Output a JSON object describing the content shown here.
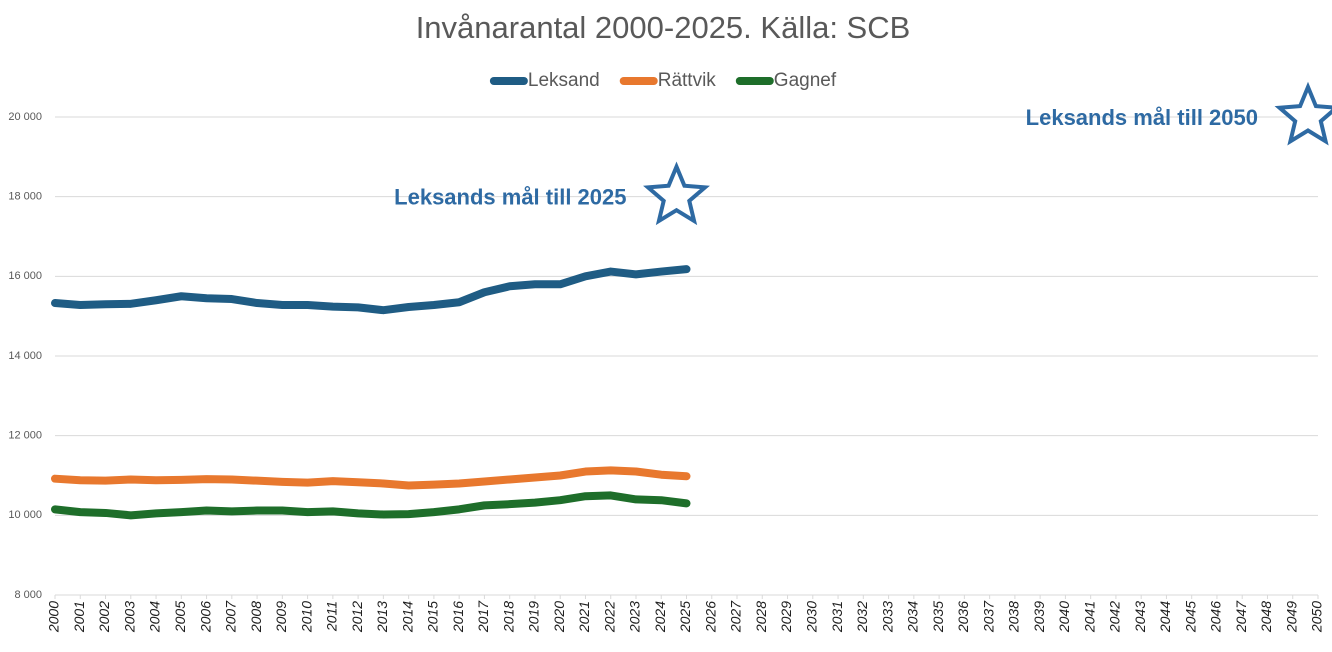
{
  "chart_data": {
    "type": "line",
    "title": "Invånarantal 2000-2025. Källa: SCB",
    "x": [
      2000,
      2001,
      2002,
      2003,
      2004,
      2005,
      2006,
      2007,
      2008,
      2009,
      2010,
      2011,
      2012,
      2013,
      2014,
      2015,
      2016,
      2017,
      2018,
      2019,
      2020,
      2021,
      2022,
      2023,
      2024,
      2025
    ],
    "series": [
      {
        "name": "Leksand",
        "color": "#1f5c84",
        "values": [
          15330,
          15280,
          15300,
          15310,
          15400,
          15500,
          15450,
          15430,
          15330,
          15280,
          15280,
          15240,
          15220,
          15150,
          15230,
          15280,
          15350,
          15600,
          15750,
          15800,
          15800,
          16000,
          16120,
          16050,
          16120,
          16180
        ]
      },
      {
        "name": "Rättvik",
        "color": "#e8782e",
        "values": [
          10920,
          10880,
          10870,
          10900,
          10880,
          10890,
          10910,
          10900,
          10870,
          10840,
          10820,
          10860,
          10830,
          10800,
          10750,
          10770,
          10800,
          10850,
          10900,
          10950,
          11000,
          11100,
          11130,
          11100,
          11020,
          10980
        ]
      },
      {
        "name": "Gagnef",
        "color": "#1e6e2a",
        "values": [
          10150,
          10080,
          10060,
          10000,
          10050,
          10080,
          10120,
          10100,
          10120,
          10120,
          10080,
          10100,
          10050,
          10020,
          10030,
          10080,
          10150,
          10250,
          10280,
          10320,
          10380,
          10480,
          10500,
          10400,
          10380,
          10300
        ]
      }
    ],
    "annotations": [
      {
        "text": "Leksands mål till 2025",
        "x": 2025,
        "y": 18000,
        "color": "#2e6aa3"
      },
      {
        "text": "Leksands mål till 2050",
        "x": 2050,
        "y": 20000,
        "color": "#2e6aa3"
      }
    ],
    "xlim": [
      2000,
      2050
    ],
    "xticks": [
      2000,
      2001,
      2002,
      2003,
      2004,
      2005,
      2006,
      2007,
      2008,
      2009,
      2010,
      2011,
      2012,
      2013,
      2014,
      2015,
      2016,
      2017,
      2018,
      2019,
      2020,
      2021,
      2022,
      2023,
      2024,
      2025,
      2026,
      2027,
      2028,
      2029,
      2030,
      2031,
      2032,
      2033,
      2034,
      2035,
      2036,
      2037,
      2038,
      2039,
      2040,
      2041,
      2042,
      2043,
      2044,
      2045,
      2046,
      2047,
      2048,
      2049,
      2050
    ],
    "ylim": [
      8000,
      20000
    ],
    "yticks": [
      {
        "value": 8000,
        "label": "8 000"
      },
      {
        "value": 10000,
        "label": "10 000"
      },
      {
        "value": 12000,
        "label": "12 000"
      },
      {
        "value": 14000,
        "label": "14 000"
      },
      {
        "value": 16000,
        "label": "16 000"
      },
      {
        "value": 18000,
        "label": "18 000"
      },
      {
        "value": 20000,
        "label": "20 000"
      }
    ],
    "grid": true
  }
}
